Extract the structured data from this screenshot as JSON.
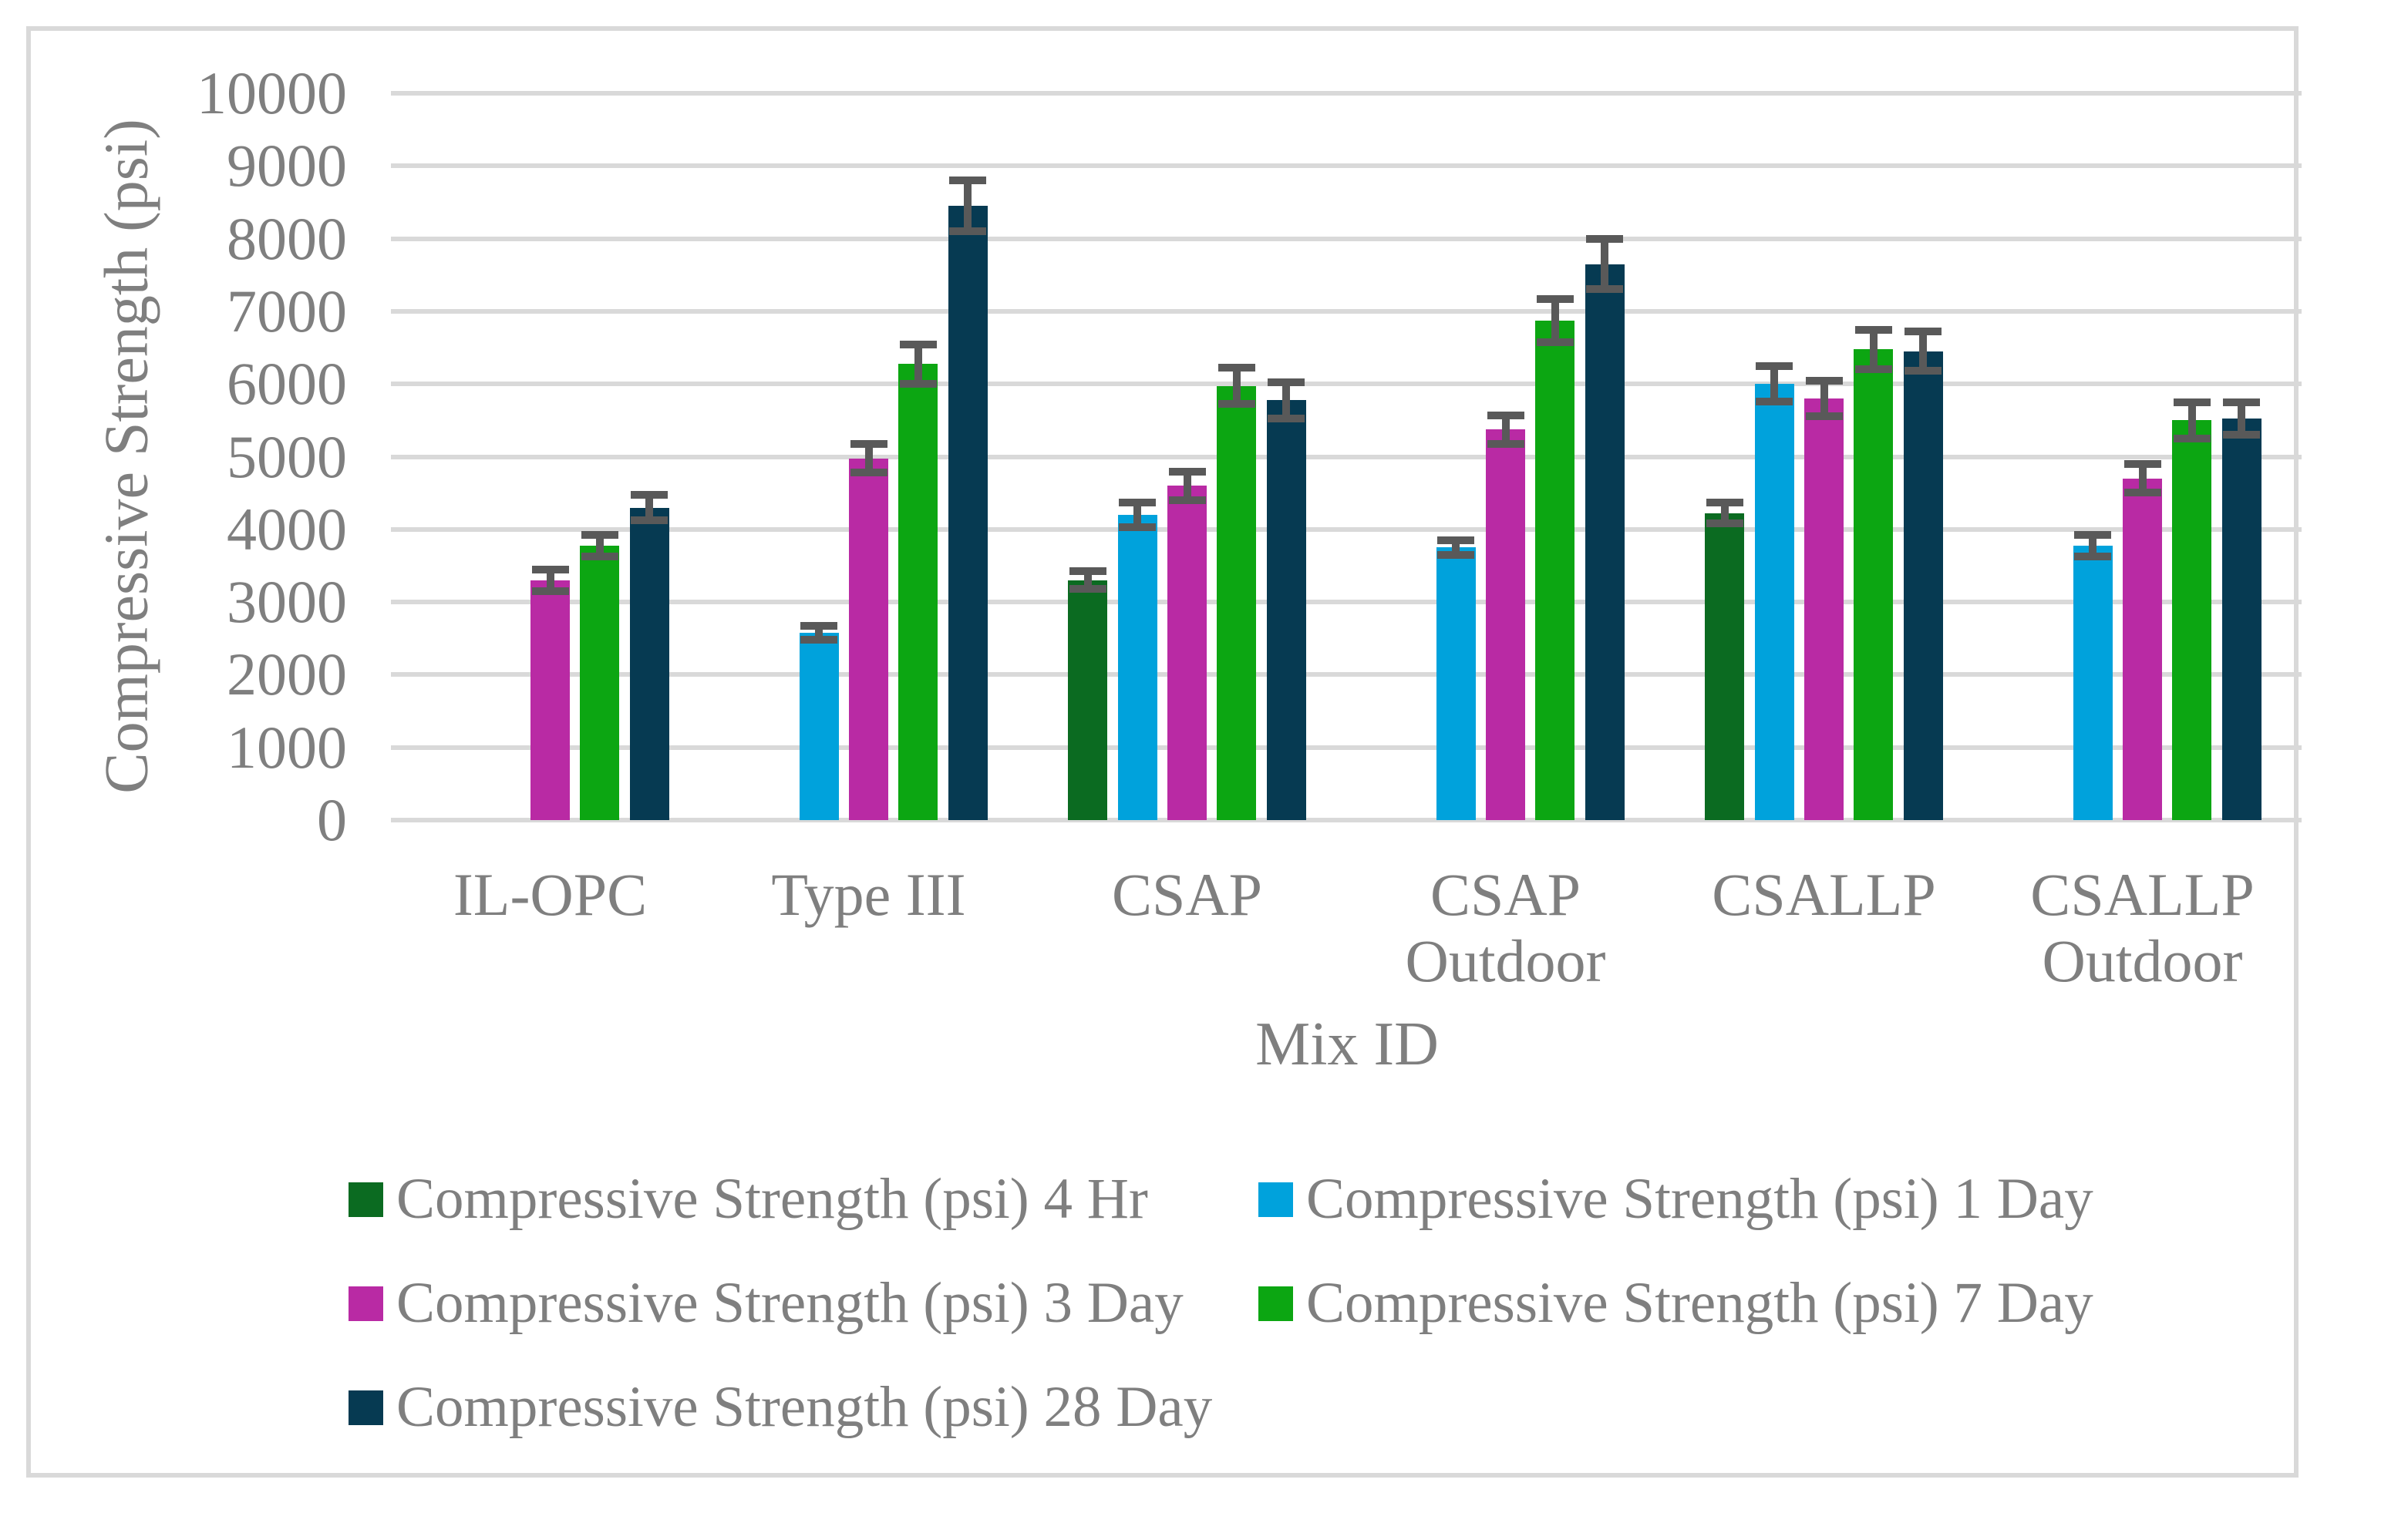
{
  "chart_data": {
    "type": "bar",
    "title": "",
    "xlabel": "Mix ID",
    "ylabel": "Compressive Strength (psi)",
    "ylim": [
      0,
      10000
    ],
    "ytick_step": 1000,
    "ytick_labels": [
      "0",
      "1000",
      "2000",
      "3000",
      "4000",
      "5000",
      "6000",
      "7000",
      "8000",
      "9000",
      "10000"
    ],
    "grid": true,
    "error_bars": true,
    "legend_position": "bottom",
    "categories": [
      "IL-OPC",
      "Type III",
      "CSAP",
      "CSAP\nOutdoor",
      "CSALLP",
      "CSALLP\nOutdoor"
    ],
    "series": [
      {
        "name": "Compressive Strength (psi) 4 Hr",
        "color": "#0b6b21",
        "values": [
          null,
          null,
          3300,
          null,
          4225,
          null
        ],
        "errors": [
          null,
          null,
          175,
          null,
          200,
          null
        ]
      },
      {
        "name": "Compressive Strength (psi) 1 Day",
        "color": "#00a2dc",
        "values": [
          null,
          2575,
          4200,
          3750,
          6000,
          3775
        ],
        "errors": [
          null,
          150,
          225,
          150,
          300,
          200
        ]
      },
      {
        "name": "Compressive Strength (psi) 3 Day",
        "color": "#b92aa4",
        "values": [
          3300,
          4975,
          4600,
          5375,
          5800,
          4700
        ],
        "errors": [
          200,
          250,
          250,
          250,
          300,
          250
        ]
      },
      {
        "name": "Compressive Strength (psi) 7 Day",
        "color": "#0ca612",
        "values": [
          3775,
          6275,
          5975,
          6875,
          6475,
          5500
        ],
        "errors": [
          200,
          325,
          300,
          350,
          325,
          300
        ]
      },
      {
        "name": "Compressive Strength (psi) 28 Day",
        "color": "#063a52",
        "values": [
          4300,
          8450,
          5775,
          7650,
          6450,
          5525
        ],
        "errors": [
          225,
          400,
          300,
          400,
          325,
          275
        ]
      }
    ]
  },
  "colors": {
    "frame_border": "#d9d9d9",
    "gridline": "#d9d9d9",
    "axis_text": "#7f7f7f",
    "error_bar": "#595959",
    "background": "#ffffff"
  }
}
